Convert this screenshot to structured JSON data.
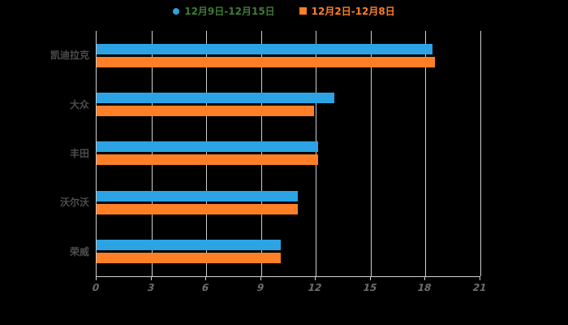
{
  "background": "#000000",
  "legend": {
    "items": [
      {
        "label": "12月9日-12月15日",
        "marker": "circle",
        "marker_color": "#2BA3E4",
        "text_color": "#3E7C33"
      },
      {
        "label": "12月2日-12月8日",
        "marker": "square",
        "marker_color": "#FF7F27",
        "text_color": "#FF7F27"
      }
    ]
  },
  "chart_data": {
    "type": "bar",
    "orientation": "horizontal",
    "title": "",
    "categories": [
      "凯迪拉克",
      "大众",
      "丰田",
      "沃尔沃",
      "荣威"
    ],
    "series": [
      {
        "name": "12月9日-12月15日",
        "color": "#2BA3E4",
        "values": [
          18.4,
          13.0,
          12.1,
          11.0,
          10.1
        ]
      },
      {
        "name": "12月2日-12月8日",
        "color": "#FF7F27",
        "values": [
          18.5,
          11.9,
          12.1,
          11.0,
          10.1
        ]
      }
    ],
    "xlim": [
      0,
      21
    ],
    "xticks": [
      0,
      3,
      6,
      9,
      12,
      15,
      18,
      21
    ],
    "grid": true,
    "legend_position": "top",
    "axis_color": "#CFCFCF",
    "grid_color": "#CFCFCF",
    "tick_label_color": "#6E6E6E",
    "category_label_color": "#4D4D4D"
  }
}
